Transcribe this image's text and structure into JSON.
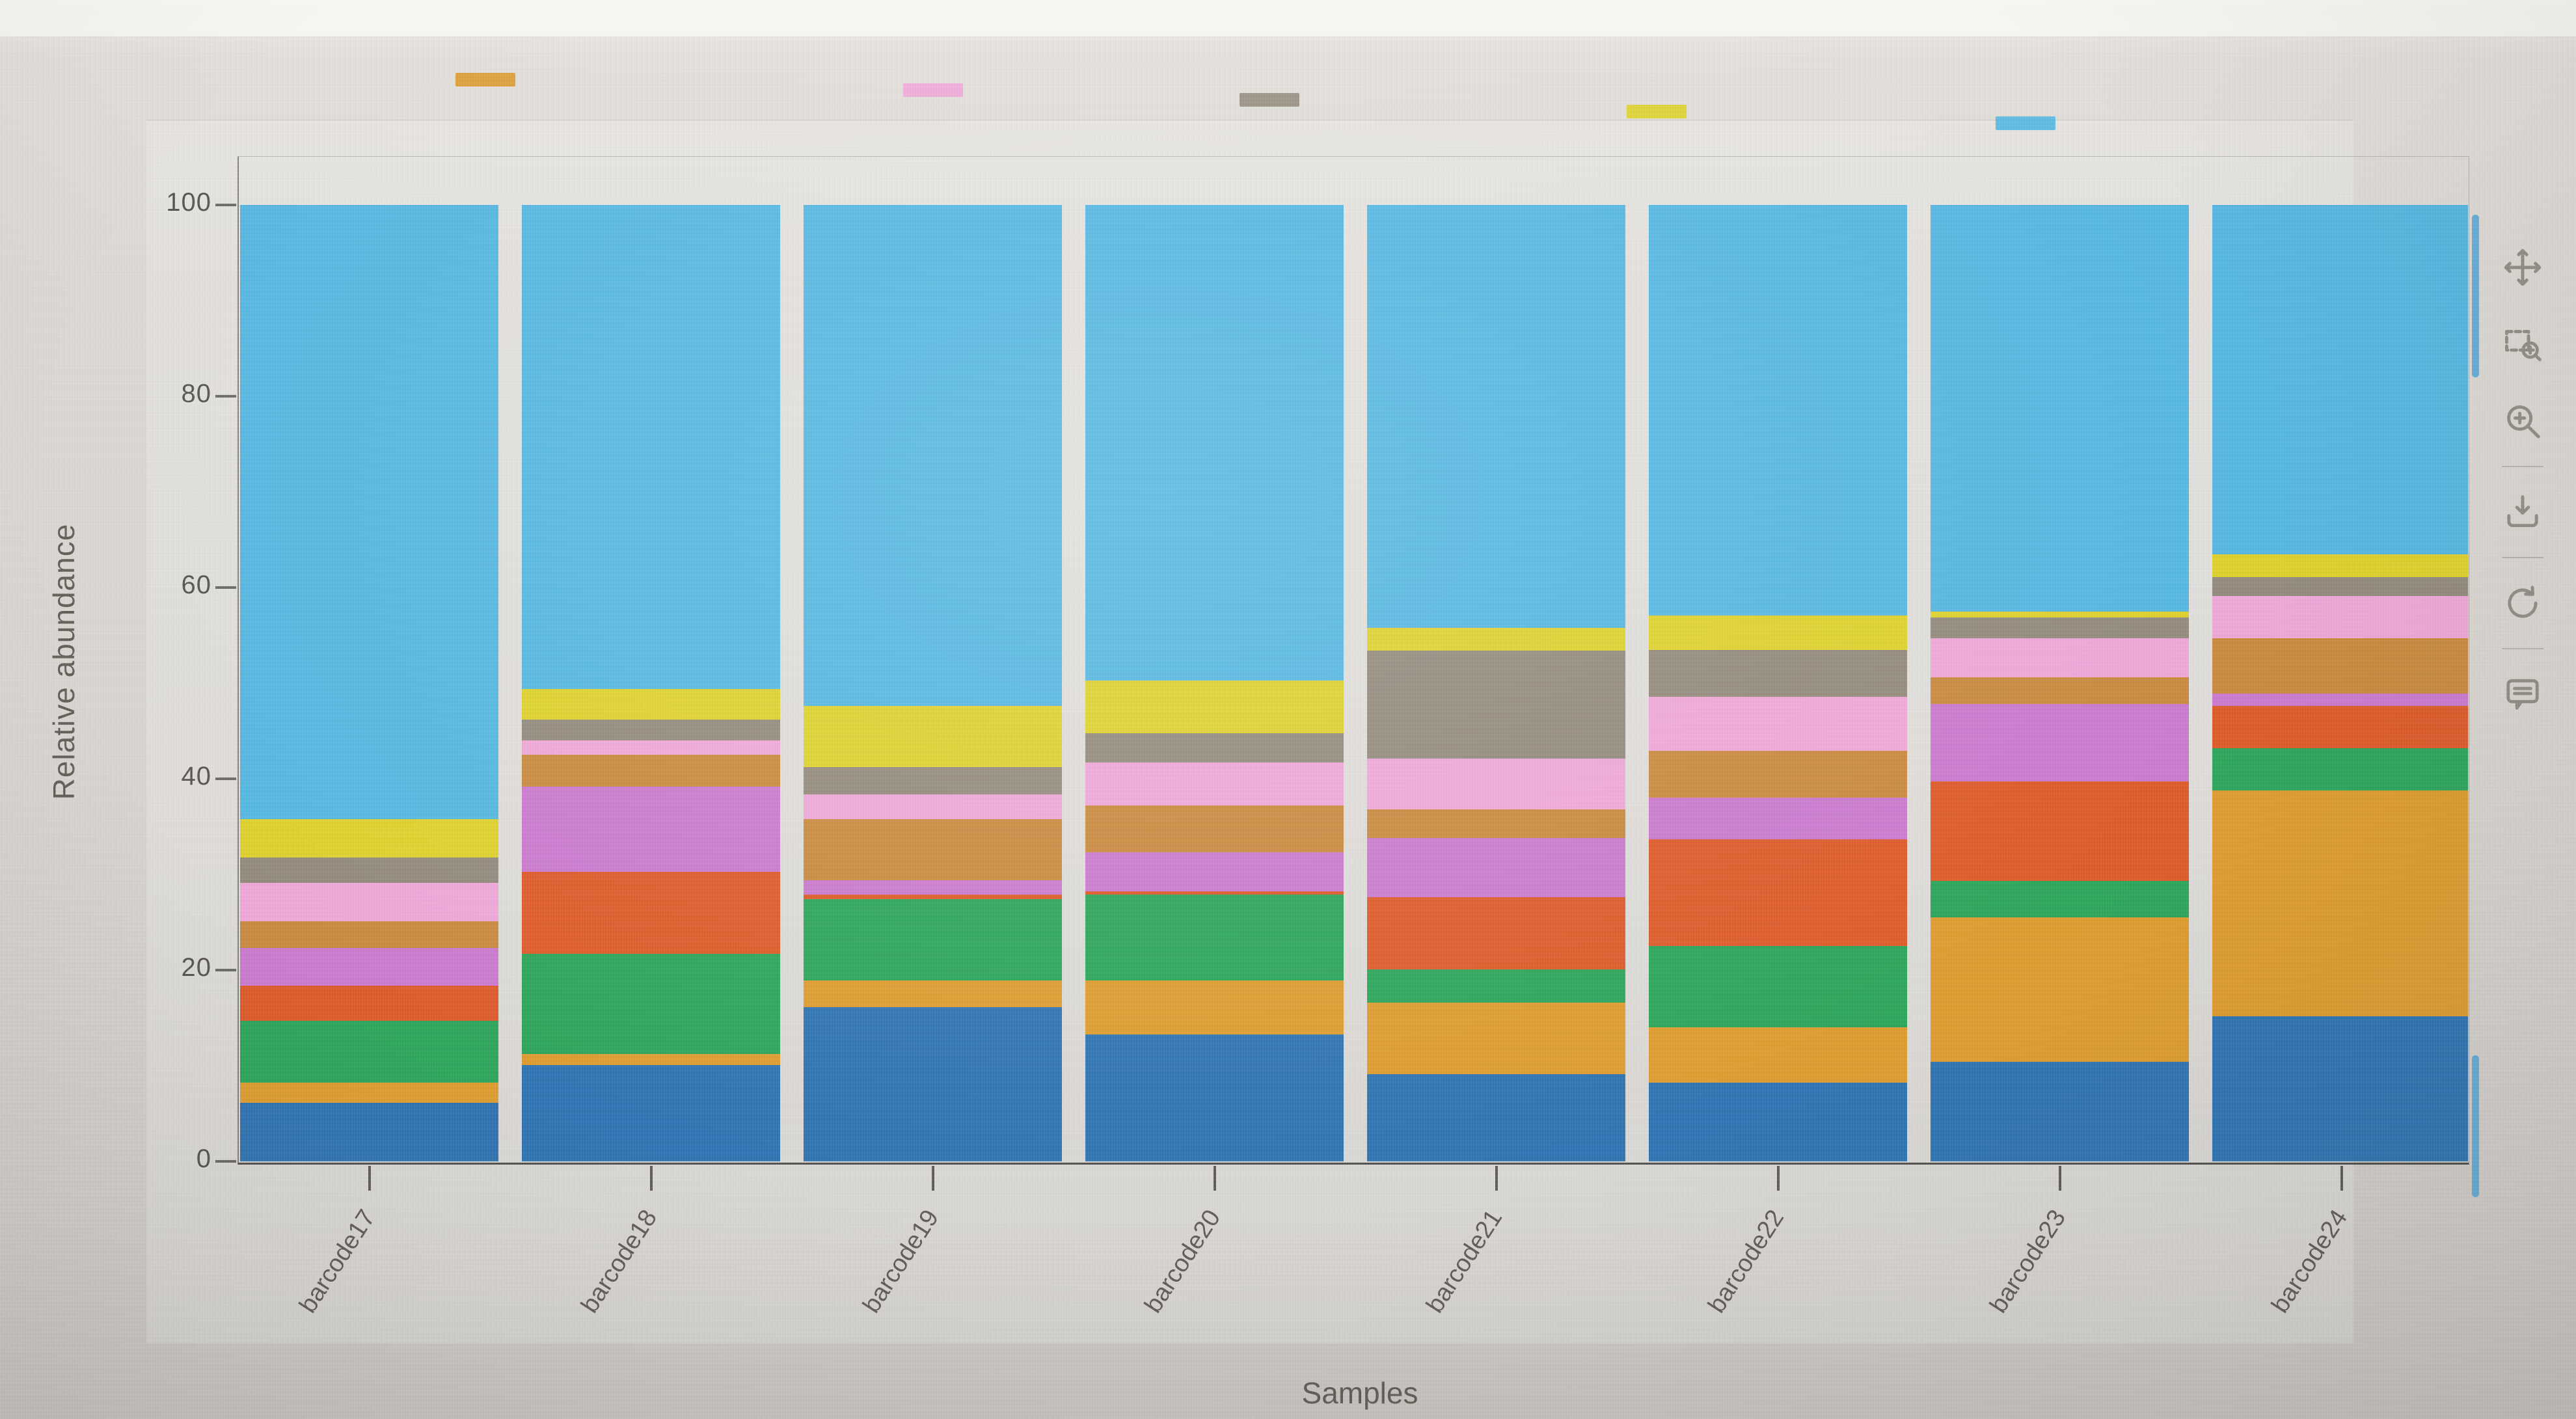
{
  "axis": {
    "ylabel": "Relative abundance",
    "xlabel": "Samples"
  },
  "legend": {
    "note": "legend labels are washed out / illegible in the screenshot; only color dashes visible",
    "items": [
      {
        "name": "amber",
        "color": "#db9b33"
      },
      {
        "name": "pink",
        "color": "#eda6d6"
      },
      {
        "name": "gray",
        "color": "#948b7d"
      },
      {
        "name": "yellow",
        "color": "#ddd02b"
      },
      {
        "name": "sky-blue",
        "color": "#56b7e2"
      }
    ]
  },
  "toolbar": {
    "tools": [
      {
        "icon": "pan-icon"
      },
      {
        "icon": "box-zoom-icon"
      },
      {
        "icon": "wheel-zoom-icon"
      },
      {
        "icon": "save-icon"
      },
      {
        "icon": "reset-icon"
      },
      {
        "icon": "help-icon"
      }
    ]
  },
  "chart_data": {
    "type": "bar",
    "stacked": true,
    "title": "",
    "xlabel": "Samples",
    "ylabel": "Relative abundance",
    "ylim": [
      0,
      105
    ],
    "yticks": [
      0,
      20,
      40,
      60,
      80,
      100
    ],
    "grid": false,
    "legend_position": "top",
    "categories": [
      "barcode17",
      "barcode18",
      "barcode19",
      "barcode20",
      "barcode21",
      "barcode22",
      "barcode23",
      "barcode24"
    ],
    "series": [
      {
        "name": "steel-blue",
        "color": "#2d73b2",
        "values": [
          6.1,
          10.1,
          16.1,
          13.3,
          9.1,
          8.2,
          10.4,
          15.2
        ]
      },
      {
        "name": "amber",
        "color": "#dd9b2e",
        "values": [
          2.1,
          1.1,
          2.8,
          5.6,
          7.5,
          5.8,
          15.1,
          23.6
        ]
      },
      {
        "name": "green",
        "color": "#2ba45a",
        "values": [
          6.5,
          10.5,
          8.5,
          9.0,
          3.5,
          8.5,
          3.8,
          4.4
        ]
      },
      {
        "name": "vermilion",
        "color": "#dc5a28",
        "values": [
          3.7,
          8.6,
          0.5,
          0.3,
          7.5,
          11.2,
          10.4,
          4.4
        ]
      },
      {
        "name": "orchid",
        "color": "#c979cd",
        "values": [
          3.9,
          8.9,
          1.5,
          4.1,
          6.2,
          4.3,
          8.1,
          1.3
        ]
      },
      {
        "name": "ochre",
        "color": "#c8893d",
        "values": [
          2.8,
          3.3,
          6.4,
          4.9,
          3.0,
          4.9,
          2.8,
          5.8
        ]
      },
      {
        "name": "pink",
        "color": "#eda6d6",
        "values": [
          4.0,
          1.5,
          2.6,
          4.5,
          5.3,
          5.7,
          4.1,
          4.4
        ]
      },
      {
        "name": "gray",
        "color": "#92897b",
        "values": [
          2.7,
          2.2,
          2.8,
          3.1,
          11.3,
          4.9,
          2.2,
          2.0
        ]
      },
      {
        "name": "yellow",
        "color": "#ddd02b",
        "values": [
          4.0,
          3.2,
          6.4,
          5.5,
          2.4,
          3.6,
          0.6,
          2.4
        ]
      },
      {
        "name": "sky-blue",
        "color": "#54b6e0",
        "values": [
          64.2,
          50.6,
          52.4,
          49.7,
          44.2,
          42.9,
          42.5,
          36.5
        ]
      }
    ]
  }
}
